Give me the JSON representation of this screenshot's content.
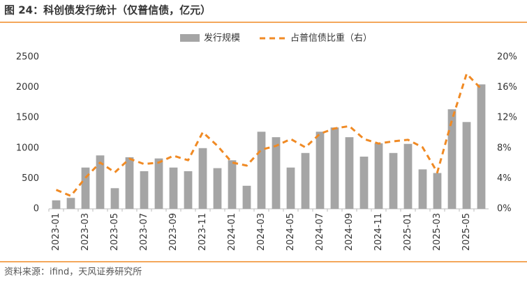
{
  "chart_data": {
    "type": "bar-line",
    "title": "图 24：科创债发行统计（仅普信债，亿元）",
    "source": "资料来源：ifind，天风证券研究所",
    "categories": [
      "2023-01",
      null,
      "2023-03",
      null,
      "2023-05",
      null,
      "2023-07",
      null,
      "2023-09",
      null,
      "2023-11",
      null,
      "2024-01",
      null,
      "2024-03",
      null,
      "2024-05",
      null,
      "2024-07",
      null,
      "2024-09",
      null,
      "2024-11",
      null,
      "2025-01",
      null,
      "2025-03",
      null,
      "2025-05",
      null
    ],
    "series": [
      {
        "name": "发行规模",
        "type": "bar",
        "color": "#a5a5a5",
        "values": [
          140,
          180,
          680,
          880,
          340,
          850,
          620,
          830,
          680,
          620,
          1000,
          670,
          800,
          380,
          1270,
          1180,
          680,
          920,
          1270,
          1340,
          1180,
          860,
          1080,
          920,
          1070,
          650,
          590,
          1640,
          1430,
          2050
        ]
      },
      {
        "name": "占普信债比重（右）",
        "type": "line",
        "axis": "y2",
        "color": "#f08a24",
        "values": [
          2.5,
          1.7,
          4.1,
          6.1,
          4.8,
          6.6,
          5.9,
          6.1,
          7.0,
          6.4,
          10.1,
          8.3,
          6.1,
          5.7,
          7.8,
          8.3,
          9.2,
          8.1,
          9.9,
          10.6,
          10.9,
          9.2,
          8.6,
          8.9,
          9.1,
          8.1,
          4.8,
          11.7,
          17.8,
          15.8
        ]
      }
    ],
    "ylim": [
      0,
      2500
    ],
    "yticks": [
      0,
      500,
      1000,
      1500,
      2000,
      2500
    ],
    "y2lim": [
      0,
      20
    ],
    "y2ticks": [
      {
        "value": 0,
        "label": "0%"
      },
      {
        "value": 4,
        "label": "4%"
      },
      {
        "value": 8,
        "label": "8%"
      },
      {
        "value": 12,
        "label": "12%"
      },
      {
        "value": 16,
        "label": "16%"
      },
      {
        "value": 20,
        "label": "20%"
      }
    ],
    "legend": "top"
  }
}
